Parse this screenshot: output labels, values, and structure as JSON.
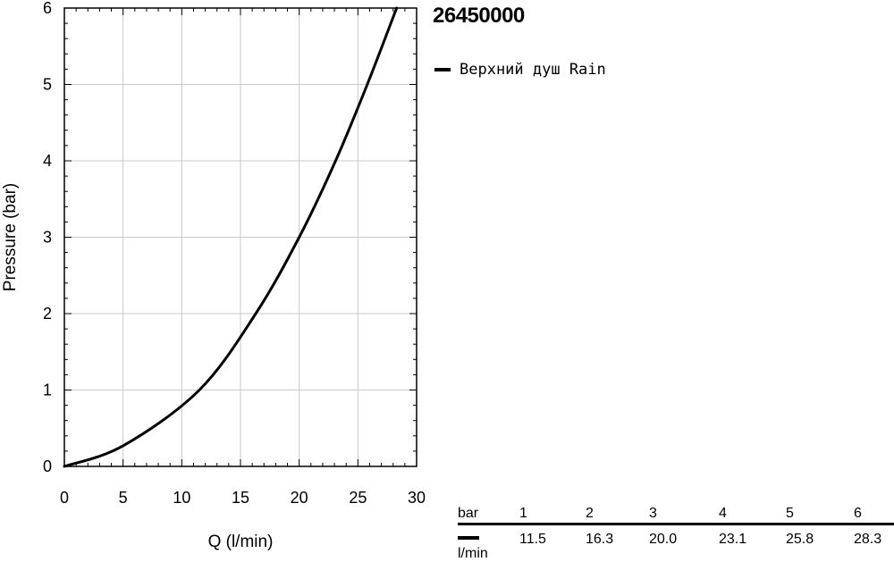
{
  "product": {
    "code": "26450000"
  },
  "legend": {
    "label": "Верхний душ Rain"
  },
  "chart_data": {
    "type": "line",
    "xlabel": "Q (l/min)",
    "ylabel": "Pressure (bar)",
    "xlim": [
      0,
      30
    ],
    "ylim": [
      0,
      6
    ],
    "x_ticks": [
      "0",
      "5",
      "10",
      "15",
      "20",
      "25",
      "30"
    ],
    "y_ticks": [
      "0",
      "1",
      "2",
      "3",
      "4",
      "5",
      "6"
    ],
    "grid": true,
    "legend_position": "top-right",
    "series": [
      {
        "name": "Верхний душ Rain",
        "color": "#000000",
        "x": [
          0,
          5,
          11.5,
          16.3,
          20.0,
          23.1,
          25.8,
          28.3
        ],
        "y": [
          0,
          0.27,
          1,
          2,
          3,
          4,
          5,
          6
        ]
      }
    ]
  },
  "flow_table": {
    "header_label": "bar",
    "unit_label": "l/min",
    "pressures": [
      "1",
      "2",
      "3",
      "4",
      "5",
      "6"
    ],
    "flows": [
      "11.5",
      "16.3",
      "20.0",
      "23.1",
      "25.8",
      "28.3"
    ]
  }
}
